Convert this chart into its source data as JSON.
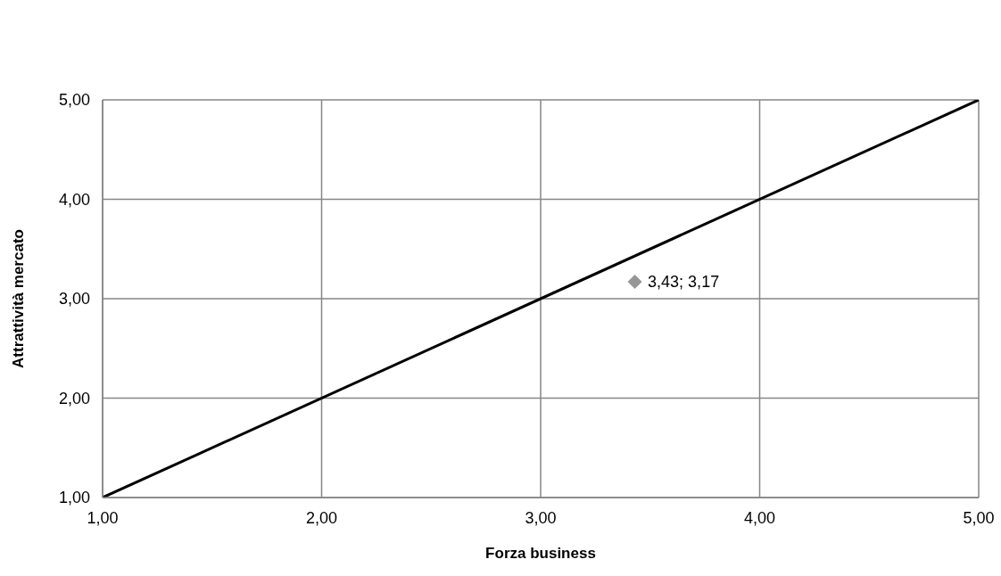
{
  "chart_data": {
    "type": "scatter",
    "xlabel": "Forza business",
    "ylabel": "Attrattività mercato",
    "xlim": [
      1,
      5
    ],
    "ylim": [
      1,
      5
    ],
    "xticks": [
      {
        "value": 1,
        "label": "1,00"
      },
      {
        "value": 2,
        "label": "2,00"
      },
      {
        "value": 3,
        "label": "3,00"
      },
      {
        "value": 4,
        "label": "4,00"
      },
      {
        "value": 5,
        "label": "5,00"
      }
    ],
    "yticks": [
      {
        "value": 1,
        "label": "1,00"
      },
      {
        "value": 2,
        "label": "2,00"
      },
      {
        "value": 3,
        "label": "3,00"
      },
      {
        "value": 4,
        "label": "4,00"
      },
      {
        "value": 5,
        "label": "5,00"
      }
    ],
    "grid": true,
    "series": [
      {
        "type": "line",
        "x": [
          1,
          5
        ],
        "values": [
          1,
          5
        ],
        "color": "#000000",
        "marker": "none"
      },
      {
        "x": [
          3.43
        ],
        "values": [
          3.17
        ],
        "color": "#969696",
        "marker": "diamond",
        "value_labels": [
          "3,43; 3,17"
        ]
      }
    ]
  }
}
